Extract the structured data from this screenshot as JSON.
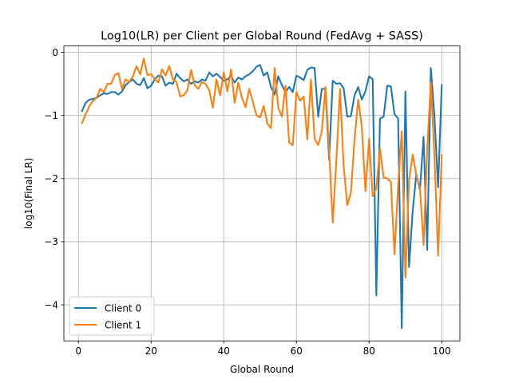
{
  "chart_data": {
    "type": "line",
    "title": "Log10(LR) per Client per Global Round (FedAvg + SASS)",
    "xlabel": "Global Round",
    "ylabel": "log10(Final LR)",
    "xlim": [
      -4,
      105
    ],
    "ylim": [
      -4.57,
      0.1
    ],
    "xticks": [
      0,
      20,
      40,
      60,
      80,
      100
    ],
    "yticks": [
      0,
      -1,
      -2,
      -3,
      -4
    ],
    "grid": true,
    "legend_position": "lower-left",
    "x": [
      1,
      2,
      3,
      4,
      5,
      6,
      7,
      8,
      9,
      10,
      11,
      12,
      13,
      14,
      15,
      16,
      17,
      18,
      19,
      20,
      21,
      22,
      23,
      24,
      25,
      26,
      27,
      28,
      29,
      30,
      31,
      32,
      33,
      34,
      35,
      36,
      37,
      38,
      39,
      40,
      41,
      42,
      43,
      44,
      45,
      46,
      47,
      48,
      49,
      50,
      51,
      52,
      53,
      54,
      55,
      56,
      57,
      58,
      59,
      60,
      61,
      62,
      63,
      64,
      65,
      66,
      67,
      68,
      69,
      70,
      71,
      72,
      73,
      74,
      75,
      76,
      77,
      78,
      79,
      80,
      81,
      82,
      83,
      84,
      85,
      86,
      87,
      88,
      89,
      90,
      91,
      92,
      93,
      94,
      95,
      96,
      97,
      98,
      99,
      100
    ],
    "series": [
      {
        "name": "Client 0",
        "color": "#1f77b4",
        "values": [
          -0.93,
          -0.8,
          -0.75,
          -0.74,
          -0.72,
          -0.68,
          -0.65,
          -0.66,
          -0.63,
          -0.63,
          -0.67,
          -0.62,
          -0.52,
          -0.47,
          -0.43,
          -0.5,
          -0.52,
          -0.41,
          -0.57,
          -0.53,
          -0.43,
          -0.37,
          -0.38,
          -0.53,
          -0.48,
          -0.5,
          -0.34,
          -0.41,
          -0.46,
          -0.43,
          -0.5,
          -0.46,
          -0.48,
          -0.43,
          -0.45,
          -0.32,
          -0.38,
          -0.34,
          -0.39,
          -0.45,
          -0.43,
          -0.37,
          -0.48,
          -0.4,
          -0.43,
          -0.38,
          -0.35,
          -0.3,
          -0.23,
          -0.2,
          -0.37,
          -0.32,
          -0.55,
          -0.67,
          -0.38,
          -0.52,
          -0.63,
          -0.55,
          -0.63,
          -0.37,
          -0.4,
          -0.44,
          -0.28,
          -0.24,
          -0.25,
          -1.02,
          -0.58,
          -0.58,
          -1.7,
          -0.45,
          -0.5,
          -0.49,
          -0.57,
          -1.02,
          -1.01,
          -0.68,
          -0.55,
          -0.75,
          -0.62,
          -0.38,
          -0.43,
          -3.85,
          -1.05,
          -1.02,
          -0.53,
          -0.54,
          -0.98,
          -1.05,
          -4.37,
          -0.62,
          -3.4,
          -2.52,
          -1.93,
          -2.18,
          -1.34,
          -3.13,
          -0.25,
          -1.02,
          -2.14,
          -0.52
        ]
      },
      {
        "name": "Client 1",
        "color": "#ff7f0e",
        "values": [
          -1.12,
          -0.98,
          -0.85,
          -0.77,
          -0.72,
          -0.58,
          -0.63,
          -0.5,
          -0.5,
          -0.36,
          -0.33,
          -0.58,
          -0.43,
          -0.47,
          -0.38,
          -0.22,
          -0.35,
          -0.1,
          -0.36,
          -0.35,
          -0.42,
          -0.48,
          -0.27,
          -0.37,
          -0.22,
          -0.43,
          -0.47,
          -0.7,
          -0.68,
          -0.6,
          -0.28,
          -0.52,
          -0.58,
          -0.47,
          -0.5,
          -0.6,
          -0.88,
          -0.43,
          -0.68,
          -0.32,
          -0.62,
          -0.27,
          -0.8,
          -0.48,
          -0.72,
          -0.87,
          -0.58,
          -0.78,
          -1.0,
          -1.03,
          -0.85,
          -1.13,
          -1.2,
          -0.25,
          -0.88,
          -1.02,
          -0.53,
          -1.43,
          -1.47,
          -0.63,
          -0.77,
          -0.7,
          -1.38,
          -0.43,
          -1.37,
          -1.47,
          -1.25,
          -0.55,
          -1.55,
          -2.7,
          -1.7,
          -0.58,
          -1.8,
          -2.42,
          -2.22,
          -1.38,
          -0.75,
          -1.18,
          -2.2,
          -1.37,
          -2.28,
          -2.15,
          -1.52,
          -1.98,
          -2.0,
          -2.05,
          -3.2,
          -2.1,
          -1.25,
          -3.57,
          -2.02,
          -1.62,
          -1.95,
          -2.15,
          -3.05,
          -1.53,
          -0.48,
          -1.65,
          -3.22,
          -1.63
        ]
      }
    ]
  }
}
